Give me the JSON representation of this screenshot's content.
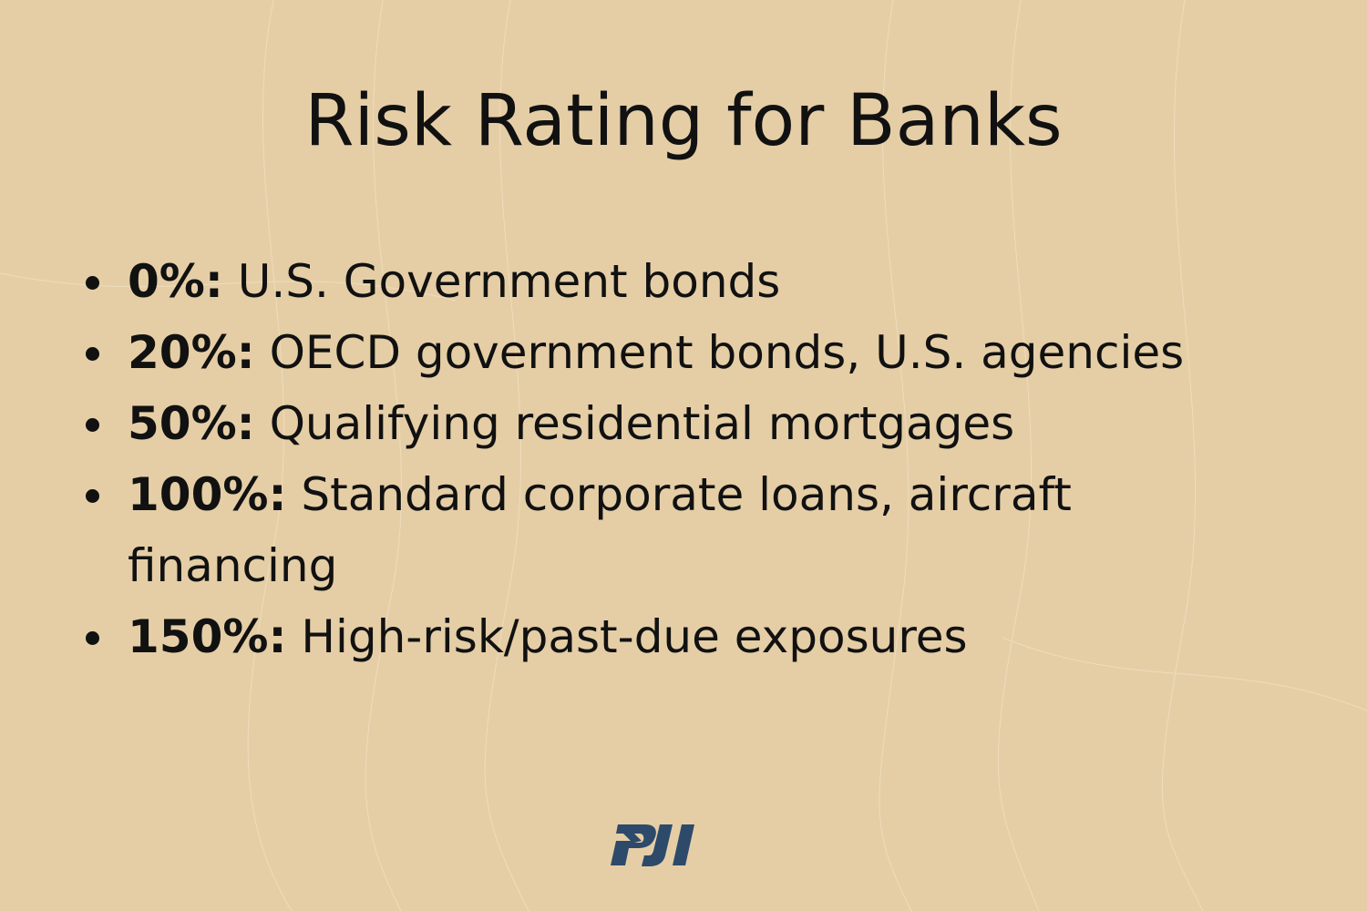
{
  "title": "Risk Rating for Banks",
  "items": [
    {
      "percent": "0%:",
      "text": " U.S. Government bonds"
    },
    {
      "percent": "20%:",
      "text": " OECD government bonds, U.S. agencies"
    },
    {
      "percent": "50%:",
      "text": " Qualifying residential mortgages"
    },
    {
      "percent": "100%:",
      "text": " Standard corporate loans, aircraft financing"
    },
    {
      "percent": "150%:",
      "text": " High-risk/past-due exposures"
    }
  ],
  "logo": {
    "text": "PJI",
    "color": "#2d4a6a"
  },
  "colors": {
    "background": "#e5cea6",
    "text": "#111111"
  }
}
